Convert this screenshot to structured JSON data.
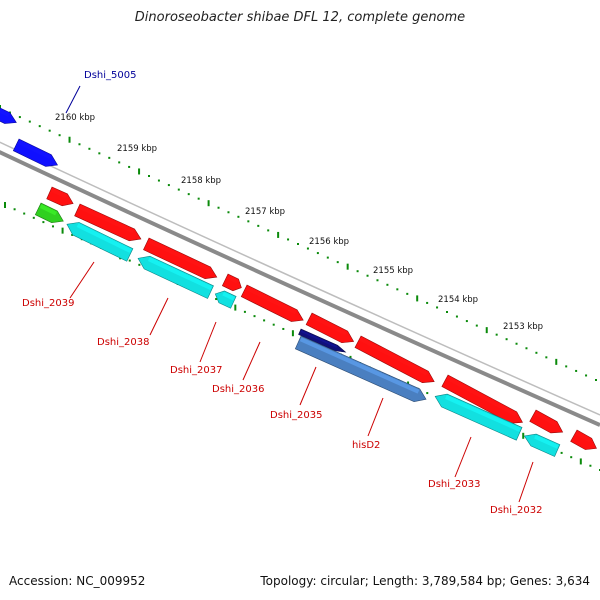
{
  "title": "Dinoroseobacter shibae DFL 12, complete genome",
  "accession": "Accession: NC_009952",
  "topology": "Topology: circular; Length: 3,789,584 bp; Genes: 3,634",
  "colors": {
    "backbone": "#8a8a8a",
    "gene_red": "#ff1010",
    "gene_cyan": "#12e0e0",
    "gene_blue": "#1010ff",
    "gene_steel": "#4a7fc0",
    "gene_navy": "#10107a",
    "gene_green": "#30d020",
    "tick_green": "#0a8a0a",
    "label_red": "#cc0000",
    "label_blue": "#000099"
  },
  "scale_labels": [
    "2160 kbp",
    "2159 kbp",
    "2158 kbp",
    "2157 kbp",
    "2156 kbp",
    "2155 kbp",
    "2154 kbp",
    "2153 kbp"
  ],
  "gene_labels": [
    {
      "text": "Dshi_5005",
      "color": "blue"
    },
    {
      "text": "Dshi_2039",
      "color": "red"
    },
    {
      "text": "Dshi_2038",
      "color": "red"
    },
    {
      "text": "Dshi_2037",
      "color": "red"
    },
    {
      "text": "Dshi_2036",
      "color": "red"
    },
    {
      "text": "Dshi_2035",
      "color": "red"
    },
    {
      "text": "hisD2",
      "color": "red"
    },
    {
      "text": "Dshi_2033",
      "color": "red"
    },
    {
      "text": "Dshi_2032",
      "color": "red"
    }
  ]
}
